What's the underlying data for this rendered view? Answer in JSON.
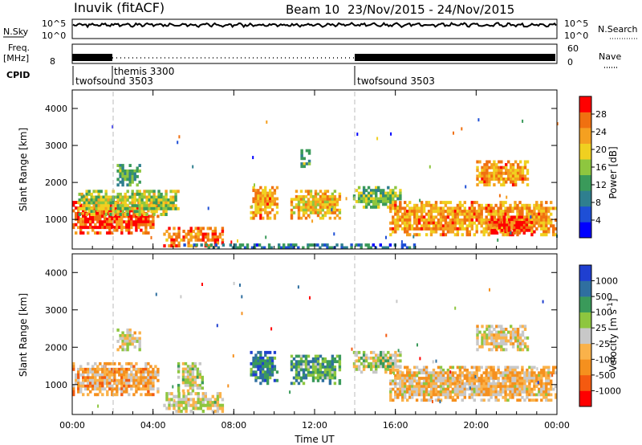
{
  "header": {
    "station": "Inuvik (fitACF)",
    "beam": "Beam 10",
    "date_range": "23/Nov/2015 - 24/Nov/2015"
  },
  "top_panels": {
    "nsky_label": "N.Sky",
    "nsearch_label": "N.Search",
    "nsky_ticks": [
      "10^5",
      "10^0"
    ],
    "nsearch_ticks": [
      "10^5",
      "10^0"
    ],
    "freq_label": "Freq.",
    "freq_unit": "[MHz]",
    "freq_ticks": [
      "8"
    ],
    "nave_label": "Nave",
    "nave_ticks": [
      "60",
      "0"
    ],
    "cpid_label": "CPID",
    "cpid_segments": [
      {
        "name": "twofsound 3503",
        "start_hour": 0
      },
      {
        "name": "themis 3300",
        "start_hour": 2
      },
      {
        "name": "twofsound 3503",
        "start_hour": 14
      }
    ]
  },
  "x_axis": {
    "label": "Time UT",
    "ticks": [
      "00:00",
      "04:00",
      "08:00",
      "12:00",
      "16:00",
      "20:00",
      "00:00"
    ]
  },
  "power_panel": {
    "ylabel": "Slant Range [km]",
    "yticks": [
      "4000",
      "3000",
      "2000",
      "1000"
    ],
    "colorbar_title": "Power [dB]",
    "colorbar_ticks": [
      "28",
      "24",
      "20",
      "16",
      "12",
      "8",
      "4"
    ]
  },
  "velocity_panel": {
    "ylabel": "Slant Range [km]",
    "yticks": [
      "4000",
      "3000",
      "2000",
      "1000"
    ],
    "colorbar_title": "Velocity [m s",
    "colorbar_title_sup": "-1",
    "colorbar_title_end": "]",
    "colorbar_ticks": [
      "1000",
      "500",
      "100",
      "25",
      "-25",
      "-100",
      "-500",
      "-1000"
    ]
  },
  "chart_data": [
    {
      "type": "heatmap",
      "title": "Power [dB]",
      "xlabel": "Time UT",
      "ylabel": "Slant Range [km]",
      "xlim_hours": [
        0,
        24
      ],
      "ylim": [
        200,
        4500
      ],
      "colorscale_range": [
        0,
        30
      ],
      "colors": [
        "#0000ff",
        "#1e4fd6",
        "#2f7f8f",
        "#3a9a5a",
        "#8ec63f",
        "#f0d020",
        "#f5a020",
        "#f07010",
        "#ff0000"
      ],
      "echo_regions": [
        {
          "t_start": 0.0,
          "t_end": 4.3,
          "range_start": 600,
          "range_end": 1500,
          "power": 26
        },
        {
          "t_start": 0.3,
          "t_end": 5.3,
          "range_start": 1100,
          "range_end": 1800,
          "power": 16
        },
        {
          "t_start": 2.2,
          "t_end": 3.4,
          "range_start": 1900,
          "range_end": 2500,
          "power": 12
        },
        {
          "t_start": 4.5,
          "t_end": 7.5,
          "range_start": 250,
          "range_end": 800,
          "power": 24
        },
        {
          "t_start": 8.8,
          "t_end": 10.2,
          "range_start": 1000,
          "range_end": 1900,
          "power": 22
        },
        {
          "t_start": 10.8,
          "t_end": 13.3,
          "range_start": 1000,
          "range_end": 1800,
          "power": 20
        },
        {
          "t_start": 11.3,
          "t_end": 11.8,
          "range_start": 2400,
          "range_end": 2900,
          "power": 12
        },
        {
          "t_start": 13.9,
          "t_end": 16.3,
          "range_start": 1300,
          "range_end": 1900,
          "power": 14
        },
        {
          "t_start": 15.7,
          "t_end": 24.0,
          "range_start": 550,
          "range_end": 1500,
          "power": 22
        },
        {
          "t_start": 20.6,
          "t_end": 22.8,
          "range_start": 600,
          "range_end": 1100,
          "power": 28
        },
        {
          "t_start": 20.0,
          "t_end": 22.6,
          "range_start": 1900,
          "range_end": 2600,
          "power": 22
        },
        {
          "t_start": 5.5,
          "t_end": 17.0,
          "range_start": 200,
          "range_end": 350,
          "power": 8
        }
      ]
    },
    {
      "type": "heatmap",
      "title": "Velocity [m s-1]",
      "xlabel": "Time UT",
      "ylabel": "Slant Range [km]",
      "xlim_hours": [
        0,
        24
      ],
      "ylim": [
        200,
        4500
      ],
      "colorscale_range": [
        -1000,
        1000
      ],
      "colors": [
        "#ff0000",
        "#f45a10",
        "#f5901e",
        "#fab24a",
        "#c8c8c8",
        "#8ec63f",
        "#3a9a5a",
        "#2f6fa0",
        "#1f3fd0"
      ],
      "echo_regions": [
        {
          "t_start": 0.0,
          "t_end": 4.3,
          "range_start": 700,
          "range_end": 1600,
          "velocity": -300
        },
        {
          "t_start": 2.2,
          "t_end": 3.4,
          "range_start": 1900,
          "range_end": 2500,
          "velocity": 0
        },
        {
          "t_start": 4.5,
          "t_end": 7.5,
          "range_start": 250,
          "range_end": 800,
          "velocity": 0
        },
        {
          "t_start": 5.2,
          "t_end": 6.5,
          "range_start": 800,
          "range_end": 1600,
          "velocity": 60
        },
        {
          "t_start": 8.8,
          "t_end": 10.2,
          "range_start": 1000,
          "range_end": 1900,
          "velocity": 600
        },
        {
          "t_start": 10.8,
          "t_end": 13.3,
          "range_start": 1000,
          "range_end": 1800,
          "velocity": 400
        },
        {
          "t_start": 13.9,
          "t_end": 16.3,
          "range_start": 1300,
          "range_end": 1900,
          "velocity": 100
        },
        {
          "t_start": 15.7,
          "t_end": 24.0,
          "range_start": 550,
          "range_end": 1500,
          "velocity": -200
        },
        {
          "t_start": 20.0,
          "t_end": 22.6,
          "range_start": 1900,
          "range_end": 2600,
          "velocity": -100
        }
      ]
    }
  ]
}
